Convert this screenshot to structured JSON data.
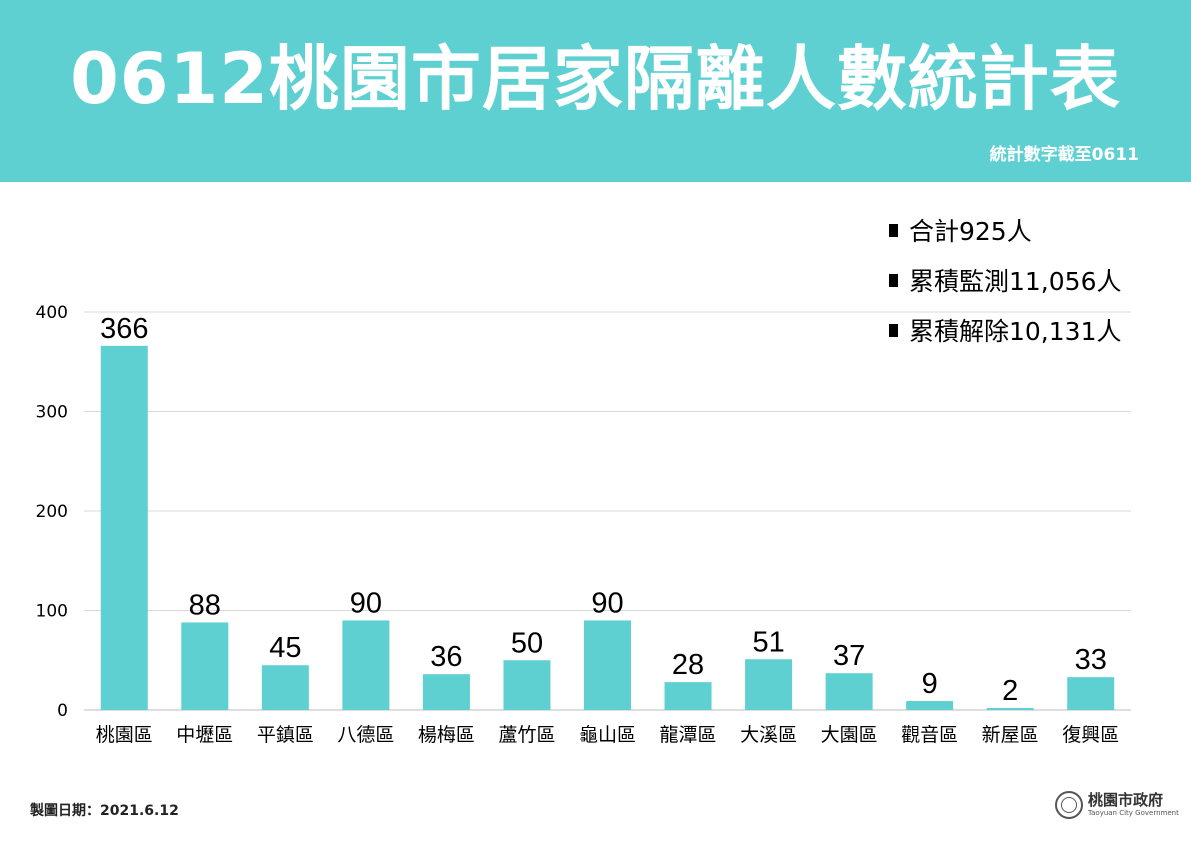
{
  "header": {
    "title": "0612桃園市居家隔離人數統計表",
    "subtitle": "統計數字截至0611"
  },
  "summary": [
    "合計925人",
    "累積監測11,056人",
    "累積解除10,131人"
  ],
  "chart_data": {
    "type": "bar",
    "title": "0612桃園市居家隔離人數統計表",
    "xlabel": "",
    "ylabel": "",
    "categories": [
      "桃園區",
      "中壢區",
      "平鎮區",
      "八德區",
      "楊梅區",
      "蘆竹區",
      "龜山區",
      "龍潭區",
      "大溪區",
      "大園區",
      "觀音區",
      "新屋區",
      "復興區"
    ],
    "values": [
      366,
      88,
      45,
      90,
      36,
      50,
      90,
      28,
      51,
      37,
      9,
      2,
      33
    ],
    "ylim": [
      0,
      400
    ],
    "yticks": [
      0,
      100,
      200,
      300,
      400
    ],
    "grid": true,
    "bar_color": "#5ED0D2",
    "data_labels": true
  },
  "footer": {
    "date_label": "製圖日期：2021.6.12",
    "logo_name": "桃園市政府",
    "logo_en": "Taoyuan City Government",
    "logo_seal_text": "桃園"
  },
  "colors": {
    "header_bg": "#5ED0D2",
    "bar": "#5ED0D2",
    "grid": "#d9d9d9"
  }
}
